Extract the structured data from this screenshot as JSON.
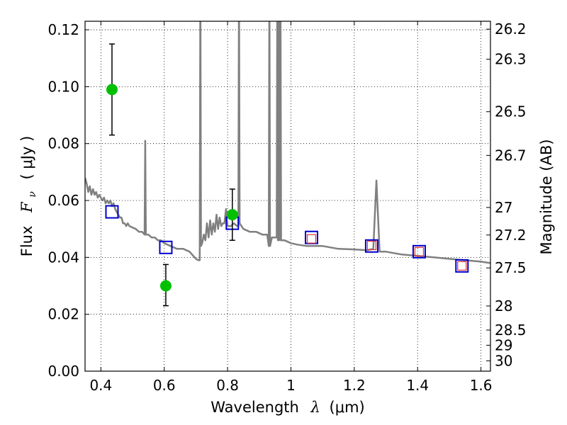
{
  "chart_data": {
    "type": "scatter",
    "xlabel": "Wavelength  λ (μm)",
    "ylabel": "Flux  F_ν  ( μJy )",
    "ylabel_parts": {
      "prefix": "Flux",
      "symbol": "F",
      "subscript": "ν",
      "unit": "( μJy )"
    },
    "xlabel_parts": {
      "prefix": "Wavelength",
      "symbol": "λ",
      "unit": "(μm)"
    },
    "y2label": "Magnitude (AB)",
    "xlim": [
      0.35,
      1.63
    ],
    "ylim": [
      0.0,
      0.123
    ],
    "grid": true,
    "x_ticks": [
      {
        "value": 0.4,
        "label": "0.4"
      },
      {
        "value": 0.6,
        "label": "0.6"
      },
      {
        "value": 0.8,
        "label": "0.8"
      },
      {
        "value": 1.0,
        "label": "1"
      },
      {
        "value": 1.2,
        "label": "1.2"
      },
      {
        "value": 1.4,
        "label": "1.4"
      },
      {
        "value": 1.6,
        "label": "1.6"
      }
    ],
    "y_ticks": [
      {
        "value": 0.0,
        "label": "0.00"
      },
      {
        "value": 0.02,
        "label": "0.02"
      },
      {
        "value": 0.04,
        "label": "0.04"
      },
      {
        "value": 0.06,
        "label": "0.06"
      },
      {
        "value": 0.08,
        "label": "0.08"
      },
      {
        "value": 0.1,
        "label": "0.10"
      },
      {
        "value": 0.12,
        "label": "0.12"
      }
    ],
    "y2_ticks": [
      {
        "value": 26.2,
        "label": "26.2"
      },
      {
        "value": 26.3,
        "label": "26.3"
      },
      {
        "value": 26.5,
        "label": "26.5"
      },
      {
        "value": 26.7,
        "label": "26.7"
      },
      {
        "value": 27.0,
        "label": "27"
      },
      {
        "value": 27.2,
        "label": "27.2"
      },
      {
        "value": 27.5,
        "label": "27.5"
      },
      {
        "value": 28.0,
        "label": "28"
      },
      {
        "value": 28.5,
        "label": "28.5"
      },
      {
        "value": 29.0,
        "label": "29"
      },
      {
        "value": 30.0,
        "label": "30"
      }
    ],
    "series": [
      {
        "kind": "sed_model_line",
        "color": "#808080",
        "points": [
          [
            0.35,
            0.068
          ],
          [
            0.355,
            0.066
          ],
          [
            0.36,
            0.063
          ],
          [
            0.365,
            0.065
          ],
          [
            0.37,
            0.062
          ],
          [
            0.375,
            0.064
          ],
          [
            0.38,
            0.062
          ],
          [
            0.385,
            0.063
          ],
          [
            0.39,
            0.061
          ],
          [
            0.395,
            0.062
          ],
          [
            0.4,
            0.061
          ],
          [
            0.405,
            0.06
          ],
          [
            0.41,
            0.061
          ],
          [
            0.415,
            0.059
          ],
          [
            0.42,
            0.06
          ],
          [
            0.425,
            0.059
          ],
          [
            0.43,
            0.06
          ],
          [
            0.435,
            0.058
          ],
          [
            0.44,
            0.059
          ],
          [
            0.445,
            0.057
          ],
          [
            0.45,
            0.056
          ],
          [
            0.455,
            0.055
          ],
          [
            0.46,
            0.054
          ],
          [
            0.465,
            0.054
          ],
          [
            0.47,
            0.052
          ],
          [
            0.475,
            0.052
          ],
          [
            0.48,
            0.051
          ],
          [
            0.485,
            0.052
          ],
          [
            0.49,
            0.051
          ],
          [
            0.5,
            0.0505
          ],
          [
            0.51,
            0.05
          ],
          [
            0.52,
            0.049
          ],
          [
            0.53,
            0.049
          ],
          [
            0.538,
            0.048
          ],
          [
            0.54,
            0.081
          ],
          [
            0.542,
            0.048
          ],
          [
            0.55,
            0.048
          ],
          [
            0.56,
            0.047
          ],
          [
            0.57,
            0.047
          ],
          [
            0.58,
            0.046
          ],
          [
            0.59,
            0.046
          ],
          [
            0.6,
            0.045
          ],
          [
            0.62,
            0.044
          ],
          [
            0.64,
            0.043
          ],
          [
            0.66,
            0.043
          ],
          [
            0.68,
            0.042
          ],
          [
            0.7,
            0.0395
          ],
          [
            0.708,
            0.039
          ],
          [
            0.712,
            0.039
          ],
          [
            0.714,
            0.14
          ],
          [
            0.716,
            0.044
          ],
          [
            0.72,
            0.045
          ],
          [
            0.725,
            0.048
          ],
          [
            0.73,
            0.046
          ],
          [
            0.735,
            0.052
          ],
          [
            0.74,
            0.047
          ],
          [
            0.745,
            0.053
          ],
          [
            0.75,
            0.048
          ],
          [
            0.755,
            0.052
          ],
          [
            0.76,
            0.049
          ],
          [
            0.765,
            0.055
          ],
          [
            0.77,
            0.05
          ],
          [
            0.775,
            0.054
          ],
          [
            0.78,
            0.051
          ],
          [
            0.785,
            0.052
          ],
          [
            0.79,
            0.052
          ],
          [
            0.795,
            0.057
          ],
          [
            0.8,
            0.051
          ],
          [
            0.81,
            0.051
          ],
          [
            0.82,
            0.052
          ],
          [
            0.83,
            0.051
          ],
          [
            0.834,
            0.051
          ],
          [
            0.836,
            0.14
          ],
          [
            0.838,
            0.052
          ],
          [
            0.85,
            0.05
          ],
          [
            0.87,
            0.049
          ],
          [
            0.89,
            0.049
          ],
          [
            0.91,
            0.048
          ],
          [
            0.925,
            0.048
          ],
          [
            0.93,
            0.044
          ],
          [
            0.932,
            0.14
          ],
          [
            0.934,
            0.044
          ],
          [
            0.94,
            0.047
          ],
          [
            0.95,
            0.047
          ],
          [
            0.955,
            0.047
          ],
          [
            0.957,
            0.14
          ],
          [
            0.959,
            0.046
          ],
          [
            0.962,
            0.14
          ],
          [
            0.964,
            0.046
          ],
          [
            0.967,
            0.14
          ],
          [
            0.969,
            0.046
          ],
          [
            0.98,
            0.046
          ],
          [
            1.0,
            0.045
          ],
          [
            1.02,
            0.0445
          ],
          [
            1.05,
            0.044
          ],
          [
            1.1,
            0.044
          ],
          [
            1.15,
            0.043
          ],
          [
            1.2,
            0.0428
          ],
          [
            1.24,
            0.0425
          ],
          [
            1.26,
            0.043
          ],
          [
            1.27,
            0.067
          ],
          [
            1.28,
            0.042
          ],
          [
            1.3,
            0.042
          ],
          [
            1.35,
            0.041
          ],
          [
            1.4,
            0.0405
          ],
          [
            1.45,
            0.04
          ],
          [
            1.5,
            0.0395
          ],
          [
            1.55,
            0.039
          ],
          [
            1.6,
            0.0385
          ],
          [
            1.63,
            0.038
          ]
        ]
      },
      {
        "kind": "observed_points",
        "color": "#00c000",
        "errorbar_color": "#000000",
        "points": [
          {
            "x": 0.435,
            "y": 0.099,
            "ylow": 0.083,
            "yhigh": 0.115
          },
          {
            "x": 0.605,
            "y": 0.03,
            "ylow": 0.023,
            "yhigh": 0.0375
          },
          {
            "x": 0.815,
            "y": 0.055,
            "ylow": 0.046,
            "yhigh": 0.064
          }
        ]
      },
      {
        "kind": "model_photometry_blue_squares",
        "color": "#0000cc",
        "points": [
          {
            "x": 0.435,
            "y": 0.056
          },
          {
            "x": 0.605,
            "y": 0.0435
          },
          {
            "x": 0.815,
            "y": 0.052
          },
          {
            "x": 1.065,
            "y": 0.047
          },
          {
            "x": 1.255,
            "y": 0.044
          },
          {
            "x": 1.405,
            "y": 0.042
          },
          {
            "x": 1.54,
            "y": 0.037
          }
        ]
      },
      {
        "kind": "model_photometry_red_squares",
        "color": "#e03030",
        "points": [
          {
            "x": 1.065,
            "y": 0.0465
          },
          {
            "x": 1.255,
            "y": 0.0442
          },
          {
            "x": 1.405,
            "y": 0.042
          },
          {
            "x": 1.54,
            "y": 0.037
          }
        ]
      }
    ]
  }
}
